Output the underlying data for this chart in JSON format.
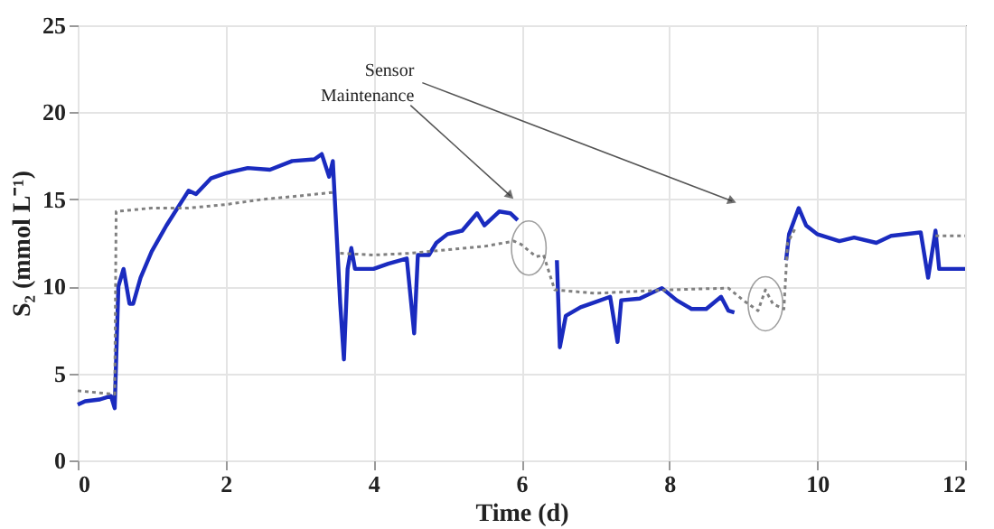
{
  "chart_data": {
    "type": "line",
    "xlabel": "Time (d)",
    "ylabel": "S₂ (mmol L⁻¹)",
    "xlim": [
      0,
      12
    ],
    "xticks": [
      0,
      2,
      4,
      6,
      8,
      10,
      12
    ],
    "ylim": [
      0,
      25
    ],
    "yticks": [
      0,
      5,
      10,
      15,
      20,
      25
    ],
    "grid": true,
    "annotations": [
      "Sensor\nMaintenance"
    ],
    "series": [
      {
        "color": "#1a2bbf",
        "line_style": "solid",
        "x": [
          0,
          0.1,
          0.3,
          0.45,
          0.5,
          0.55,
          0.62,
          0.7,
          0.75,
          0.85,
          1.0,
          1.2,
          1.5,
          1.6,
          1.8,
          2.0,
          2.3,
          2.6,
          2.9,
          3.2,
          3.3,
          3.4,
          3.45,
          3.55,
          3.6,
          3.65,
          3.7,
          3.75,
          4.0,
          4.2,
          4.45,
          4.55,
          4.6,
          4.75,
          4.85,
          5.0,
          5.2,
          5.4,
          5.5,
          5.7,
          5.85,
          5.95,
          6.2,
          6.48,
          6.52,
          6.6,
          6.8,
          7.0,
          7.2,
          7.3,
          7.35,
          7.6,
          7.9,
          8.1,
          8.3,
          8.5,
          8.7,
          8.8,
          8.88,
          9.2,
          9.58,
          9.62,
          9.75,
          9.85,
          10.0,
          10.3,
          10.5,
          10.8,
          11.0,
          11.4,
          11.5,
          11.6,
          11.65,
          12
        ],
        "values": [
          3.2,
          3.4,
          3.5,
          3.7,
          3.0,
          10,
          11,
          9.0,
          9.0,
          10.5,
          12,
          13.5,
          15.5,
          15.3,
          16.2,
          16.5,
          16.8,
          16.7,
          17.2,
          17.3,
          17.6,
          16.3,
          17.2,
          9,
          5.8,
          11,
          12.2,
          11,
          11,
          11.3,
          11.6,
          7.3,
          11.8,
          11.8,
          12.5,
          13.0,
          13.2,
          14.2,
          13.5,
          14.3,
          14.2,
          13.8,
          null,
          11.5,
          6.5,
          8.3,
          8.8,
          9.1,
          9.4,
          6.8,
          9.2,
          9.3,
          9.9,
          9.2,
          8.7,
          8.7,
          9.4,
          8.6,
          8.5,
          null,
          11.5,
          13,
          14.5,
          13.5,
          13,
          12.6,
          12.8,
          12.5,
          12.9,
          13.1,
          10.5,
          13.2,
          11,
          11
        ]
      },
      {
        "color": "#808080",
        "line_style": "dotted",
        "x": [
          0,
          0.5,
          0.52,
          1.0,
          1.5,
          2.0,
          2.5,
          3.0,
          3.45,
          3.5,
          3.55,
          4.0,
          4.5,
          5.0,
          5.5,
          5.9,
          6.0,
          6.2,
          6.3,
          6.45,
          7.0,
          8.0,
          8.8,
          9.0,
          9.2,
          9.3,
          9.4,
          9.55,
          9.6,
          9.7,
          10.5,
          11.6,
          12
        ],
        "values": [
          4.0,
          3.8,
          14.3,
          14.5,
          14.5,
          14.7,
          15.0,
          15.2,
          15.4,
          null,
          11.9,
          11.8,
          11.9,
          12.1,
          12.3,
          12.6,
          12.4,
          11.7,
          11.8,
          9.8,
          9.6,
          9.8,
          9.9,
          9.2,
          8.6,
          9.8,
          9.0,
          8.7,
          12.5,
          13.3,
          null,
          12.9,
          12.9
        ]
      }
    ]
  }
}
